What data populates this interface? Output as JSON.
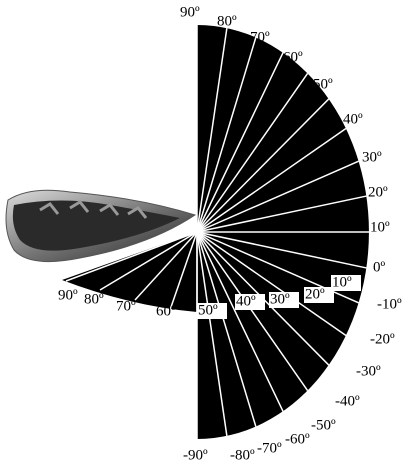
{
  "outer_labels": [
    "90º",
    "80º",
    "70º",
    "60º",
    "50º",
    "40º",
    "30º",
    "20º",
    "10º",
    "0º",
    "-10º",
    "-20º",
    "-30º",
    "-40º",
    "-50º",
    "-60º",
    "-70º",
    "-80º",
    "-90º"
  ],
  "inner_labels": [
    "10º",
    "20º",
    "30º",
    "40º",
    "50º"
  ],
  "wedge_labels": [
    "90º",
    "80º",
    "70º",
    "60º"
  ]
}
